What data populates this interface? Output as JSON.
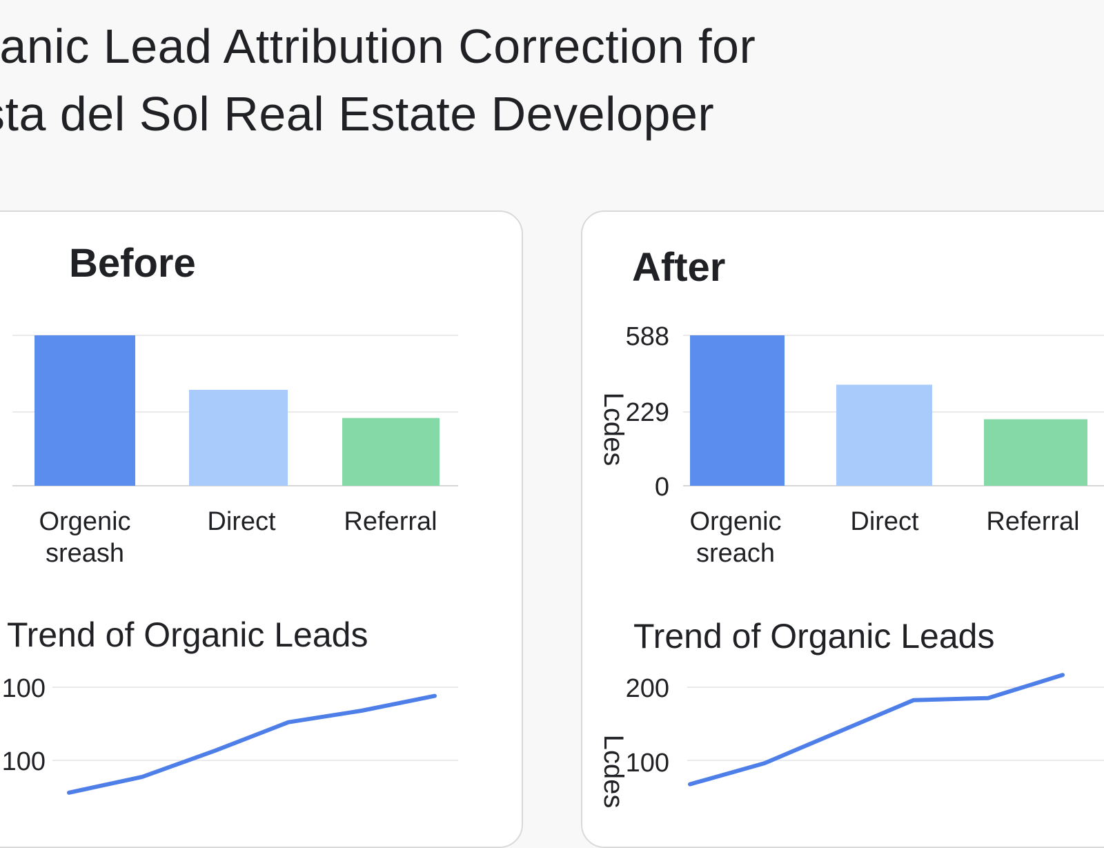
{
  "page": {
    "title_line1": "ganic Lead Attribution Correction for",
    "title_line2": "sta del Sol Real Estate Developer"
  },
  "colors": {
    "bar_primary": "#5b8def",
    "bar_secondary": "#a8cbfb",
    "bar_tertiary": "#84d9a6",
    "line": "#4e7fe8",
    "grid": "#e3e3e3",
    "text": "#202124"
  },
  "panels": {
    "before": {
      "title": "Before",
      "trend_title": "Trend of Organic Leads"
    },
    "after": {
      "title": "After",
      "trend_title": "Trend of Organic Leads"
    }
  },
  "chart_data": [
    {
      "id": "before-bars",
      "type": "bar",
      "title": "Before",
      "categories": [
        "Orgenic\nsreash",
        "Direct",
        "Referral"
      ],
      "values": [
        588,
        375,
        265
      ],
      "ylim": [
        0,
        588
      ],
      "yticks": [],
      "ylabel": "",
      "colors": [
        "#5b8def",
        "#a8cbfb",
        "#84d9a6"
      ]
    },
    {
      "id": "after-bars",
      "type": "bar",
      "title": "After",
      "categories": [
        "Orgenic\nsreach",
        "Direct",
        "Referral"
      ],
      "values": [
        588,
        395,
        260
      ],
      "ylim": [
        0,
        588
      ],
      "yticks": [
        "0",
        "229",
        "588"
      ],
      "ylabel": "Lcdes",
      "colors": [
        "#5b8def",
        "#a8cbfb",
        "#84d9a6"
      ]
    },
    {
      "id": "before-trend",
      "type": "line",
      "title": "Trend of Organic Leads",
      "x": [
        1,
        2,
        3,
        4,
        5,
        6
      ],
      "values": [
        80,
        95,
        120,
        147,
        158,
        172
      ],
      "ylim": [
        70,
        200
      ],
      "yticks": [
        "100",
        "100"
      ],
      "ylabel": ""
    },
    {
      "id": "after-trend",
      "type": "line",
      "title": "Trend of Organic Leads",
      "x": [
        1,
        2,
        3,
        4,
        5,
        6
      ],
      "values": [
        88,
        108,
        138,
        168,
        170,
        192
      ],
      "ylim": [
        70,
        200
      ],
      "yticks": [
        "100",
        "200"
      ],
      "ylabel": "Lcdes"
    }
  ]
}
